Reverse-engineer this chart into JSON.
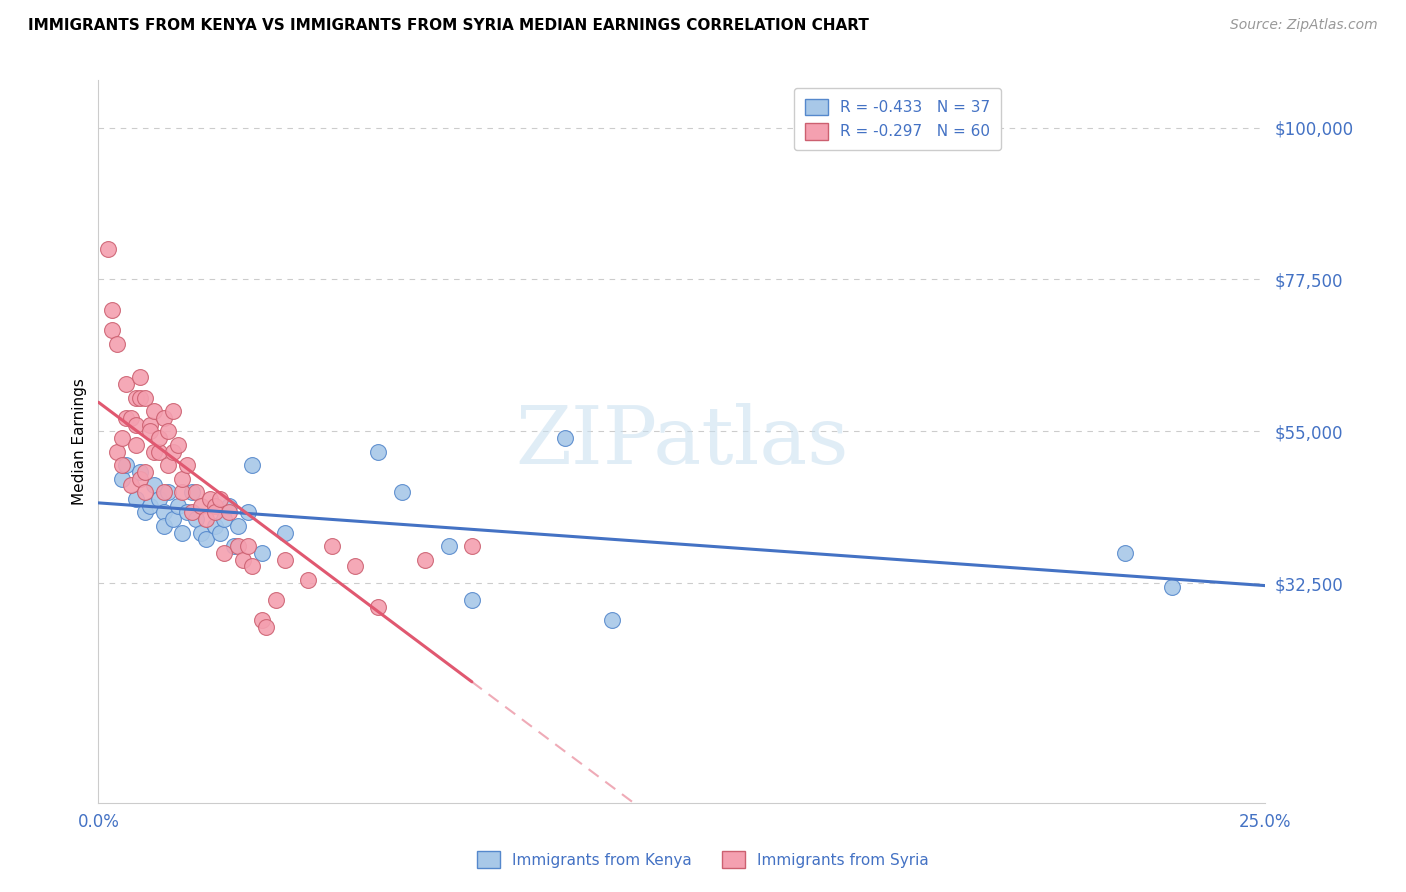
{
  "title": "IMMIGRANTS FROM KENYA VS IMMIGRANTS FROM SYRIA MEDIAN EARNINGS CORRELATION CHART",
  "source": "Source: ZipAtlas.com",
  "ylabel": "Median Earnings",
  "xlim": [
    0.0,
    0.25
  ],
  "ylim": [
    0,
    107000
  ],
  "ytick_vals": [
    32500,
    55000,
    77500,
    100000
  ],
  "ytick_labels": [
    "$32,500",
    "$55,000",
    "$77,500",
    "$100,000"
  ],
  "xtick_vals": [
    0.0,
    0.05,
    0.1,
    0.15,
    0.2,
    0.25
  ],
  "xtick_labels": [
    "0.0%",
    "",
    "",
    "",
    "",
    "25.0%"
  ],
  "legend_kenya": "R = -0.433   N = 37",
  "legend_syria": "R = -0.297   N = 60",
  "legend_label_kenya": "Immigrants from Kenya",
  "legend_label_syria": "Immigrants from Syria",
  "color_kenya_fill": "#a8c8e8",
  "color_kenya_edge": "#5588cc",
  "color_syria_fill": "#f4a0b0",
  "color_syria_edge": "#cc6070",
  "color_kenya_line": "#4472c4",
  "color_syria_line": "#e05870",
  "color_axis_blue": "#4472c4",
  "color_grid": "#cccccc",
  "watermark_text": "ZIPatlas",
  "watermark_color": "#ddeeff",
  "kenya_x": [
    0.005,
    0.006,
    0.008,
    0.009,
    0.01,
    0.011,
    0.012,
    0.013,
    0.014,
    0.014,
    0.015,
    0.016,
    0.017,
    0.018,
    0.019,
    0.02,
    0.021,
    0.022,
    0.023,
    0.025,
    0.026,
    0.027,
    0.028,
    0.029,
    0.03,
    0.032,
    0.033,
    0.035,
    0.04,
    0.06,
    0.065,
    0.075,
    0.08,
    0.1,
    0.11,
    0.22,
    0.23
  ],
  "kenya_y": [
    48000,
    50000,
    45000,
    49000,
    43000,
    44000,
    47000,
    45000,
    43000,
    41000,
    46000,
    42000,
    44000,
    40000,
    43000,
    46000,
    42000,
    40000,
    39000,
    41000,
    40000,
    42000,
    44000,
    38000,
    41000,
    43000,
    50000,
    37000,
    40000,
    52000,
    46000,
    38000,
    30000,
    54000,
    27000,
    37000,
    32000
  ],
  "syria_x": [
    0.002,
    0.003,
    0.003,
    0.004,
    0.004,
    0.005,
    0.005,
    0.006,
    0.006,
    0.007,
    0.007,
    0.008,
    0.008,
    0.008,
    0.009,
    0.009,
    0.009,
    0.01,
    0.01,
    0.01,
    0.011,
    0.011,
    0.012,
    0.012,
    0.013,
    0.013,
    0.014,
    0.014,
    0.015,
    0.015,
    0.016,
    0.016,
    0.017,
    0.018,
    0.018,
    0.019,
    0.02,
    0.021,
    0.022,
    0.023,
    0.024,
    0.025,
    0.025,
    0.026,
    0.027,
    0.028,
    0.03,
    0.031,
    0.032,
    0.033,
    0.035,
    0.036,
    0.038,
    0.04,
    0.045,
    0.05,
    0.055,
    0.06,
    0.07,
    0.08
  ],
  "syria_y": [
    82000,
    73000,
    70000,
    52000,
    68000,
    50000,
    54000,
    62000,
    57000,
    47000,
    57000,
    53000,
    60000,
    56000,
    63000,
    60000,
    48000,
    49000,
    46000,
    60000,
    56000,
    55000,
    52000,
    58000,
    52000,
    54000,
    46000,
    57000,
    55000,
    50000,
    52000,
    58000,
    53000,
    46000,
    48000,
    50000,
    43000,
    46000,
    44000,
    42000,
    45000,
    44000,
    43000,
    45000,
    37000,
    43000,
    38000,
    36000,
    38000,
    35000,
    27000,
    26000,
    30000,
    36000,
    33000,
    38000,
    35000,
    29000,
    36000,
    38000
  ]
}
